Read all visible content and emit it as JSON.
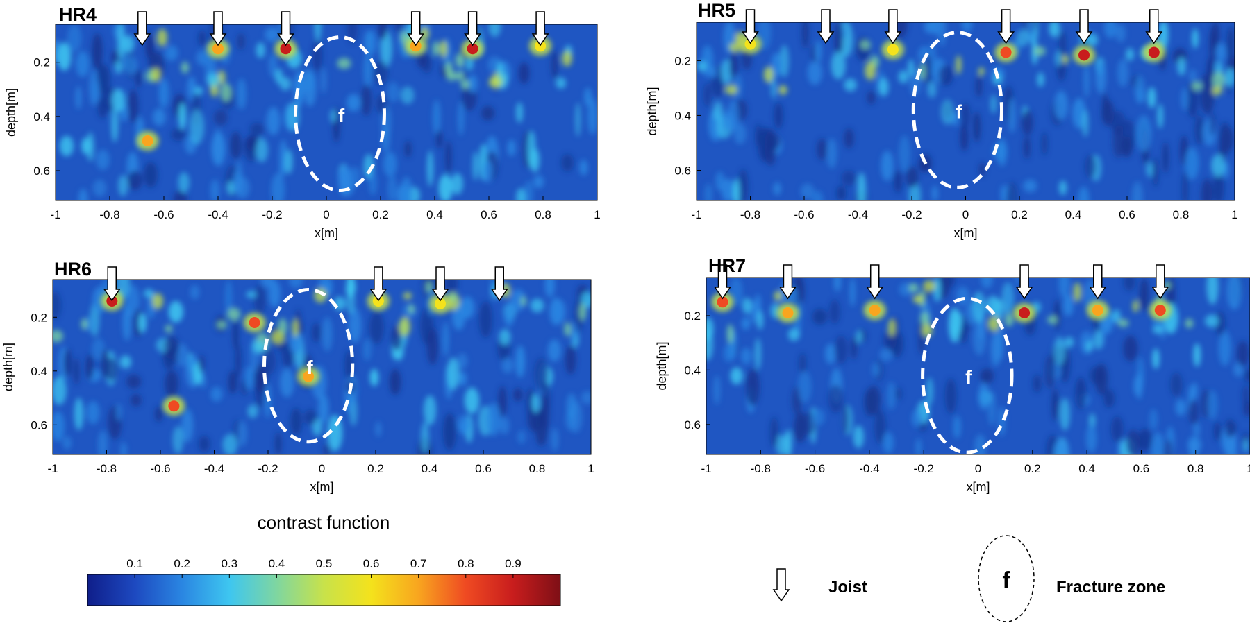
{
  "chart_data": [
    {
      "type": "heatmap",
      "title": "HR4",
      "xlabel": "x[m]",
      "ylabel": "depth[m]",
      "xlim": [
        -1,
        1
      ],
      "ylim": [
        0.06,
        0.71
      ],
      "x_ticks": [
        "-1",
        "-0.8",
        "-0.6",
        "-0.4",
        "-0.2",
        "0",
        "0.2",
        "0.4",
        "0.6",
        "0.8",
        "1"
      ],
      "y_ticks": [
        "0.2",
        "0.4",
        "0.6"
      ],
      "joists_x": [
        -0.68,
        -0.4,
        -0.15,
        0.33,
        0.54,
        0.79
      ],
      "fracture_zone": {
        "label": "f",
        "x_center": 0.05,
        "depth_center": 0.39
      },
      "hotspots": [
        {
          "x": -0.15,
          "depth": 0.15,
          "value": 0.85
        },
        {
          "x": 0.54,
          "depth": 0.15,
          "value": 0.85
        },
        {
          "x": 0.33,
          "depth": 0.14,
          "value": 0.7
        },
        {
          "x": -0.4,
          "depth": 0.15,
          "value": 0.65
        },
        {
          "x": -0.66,
          "depth": 0.49,
          "value": 0.7
        },
        {
          "x": 0.79,
          "depth": 0.14,
          "value": 0.6
        }
      ]
    },
    {
      "type": "heatmap",
      "title": "HR5",
      "xlabel": "x[m]",
      "ylabel": "depth[m]",
      "xlim": [
        -1,
        1
      ],
      "ylim": [
        0.06,
        0.71
      ],
      "x_ticks": [
        "-1",
        "-0.8",
        "-0.6",
        "-0.4",
        "-0.2",
        "0",
        "0.2",
        "0.4",
        "0.6",
        "0.8",
        "1"
      ],
      "y_ticks": [
        "0.2",
        "0.4",
        "0.6"
      ],
      "joists_x": [
        -0.8,
        -0.52,
        -0.27,
        0.15,
        0.44,
        0.7
      ],
      "fracture_zone": {
        "label": "f",
        "x_center": -0.03,
        "depth_center": 0.38
      },
      "hotspots": [
        {
          "x": 0.15,
          "depth": 0.17,
          "value": 0.8
        },
        {
          "x": 0.44,
          "depth": 0.18,
          "value": 0.85
        },
        {
          "x": 0.7,
          "depth": 0.17,
          "value": 0.9
        },
        {
          "x": -0.27,
          "depth": 0.16,
          "value": 0.55
        },
        {
          "x": -0.8,
          "depth": 0.14,
          "value": 0.6
        }
      ]
    },
    {
      "type": "heatmap",
      "title": "HR6",
      "xlabel": "x[m]",
      "ylabel": "depth[m]",
      "xlim": [
        -1,
        1
      ],
      "ylim": [
        0.06,
        0.71
      ],
      "x_ticks": [
        "-1",
        "-0.8",
        "-0.6",
        "-0.4",
        "-0.2",
        "0",
        "0.2",
        "0.4",
        "0.6",
        "0.8",
        "1"
      ],
      "y_ticks": [
        "0.2",
        "0.4",
        "0.6"
      ],
      "joists_x": [
        -0.78,
        0.21,
        0.44,
        0.66
      ],
      "fracture_zone": {
        "label": "f",
        "x_center": -0.05,
        "depth_center": 0.38
      },
      "hotspots": [
        {
          "x": -0.78,
          "depth": 0.14,
          "value": 0.9
        },
        {
          "x": -0.25,
          "depth": 0.22,
          "value": 0.8
        },
        {
          "x": -0.55,
          "depth": 0.53,
          "value": 0.8
        },
        {
          "x": -0.05,
          "depth": 0.42,
          "value": 0.7
        },
        {
          "x": 0.44,
          "depth": 0.15,
          "value": 0.6
        },
        {
          "x": 0.21,
          "depth": 0.14,
          "value": 0.55
        }
      ]
    },
    {
      "type": "heatmap",
      "title": "HR7",
      "xlabel": "x[m]",
      "ylabel": "depth[m]",
      "xlim": [
        -1,
        1
      ],
      "ylim": [
        0.06,
        0.71
      ],
      "x_ticks": [
        "-1",
        "-0.8",
        "-0.6",
        "-0.4",
        "-0.2",
        "0",
        "0.2",
        "0.4",
        "0.6",
        "0.8",
        "1"
      ],
      "y_ticks": [
        "0.2",
        "0.4",
        "0.6"
      ],
      "joists_x": [
        -0.94,
        -0.7,
        -0.38,
        0.17,
        0.44,
        0.67
      ],
      "fracture_zone": {
        "label": "f",
        "x_center": -0.04,
        "depth_center": 0.42
      },
      "hotspots": [
        {
          "x": 0.17,
          "depth": 0.19,
          "value": 0.9
        },
        {
          "x": -0.94,
          "depth": 0.15,
          "value": 0.8
        },
        {
          "x": -0.7,
          "depth": 0.19,
          "value": 0.7
        },
        {
          "x": -0.38,
          "depth": 0.18,
          "value": 0.7
        },
        {
          "x": 0.67,
          "depth": 0.18,
          "value": 0.75
        },
        {
          "x": 0.44,
          "depth": 0.18,
          "value": 0.65
        }
      ]
    }
  ],
  "colorbar": {
    "title": "contrast function",
    "ticks": [
      "0.1",
      "0.2",
      "0.3",
      "0.4",
      "0.5",
      "0.6",
      "0.7",
      "0.8",
      "0.9"
    ],
    "range": [
      0,
      1
    ],
    "stops": [
      "#0f1e8a",
      "#1d49c0",
      "#2a86e2",
      "#3ec6f0",
      "#7fd6a0",
      "#c8e24a",
      "#f4e21c",
      "#f8a51f",
      "#ef4a22",
      "#c81d1d",
      "#7e0f16"
    ]
  },
  "legend": {
    "joist_label": "Joist",
    "fracture_label": "Fracture zone",
    "fracture_symbol": "f"
  }
}
